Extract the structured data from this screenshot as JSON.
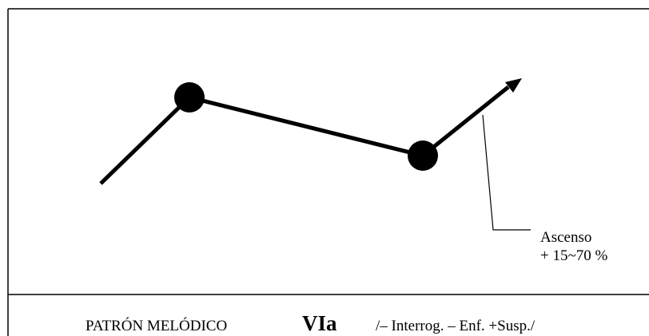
{
  "diagram": {
    "annotation": {
      "line1": "Ascenso",
      "line2": "+ 15~70 %"
    },
    "caption": {
      "label": "PATRÓN MELÓDICO",
      "pattern_id": "VIa",
      "description": "/– Interrog. – Enf. +Susp./"
    },
    "colors": {
      "line": "#000000",
      "frame": "#000000",
      "background": "#ffffff"
    }
  }
}
